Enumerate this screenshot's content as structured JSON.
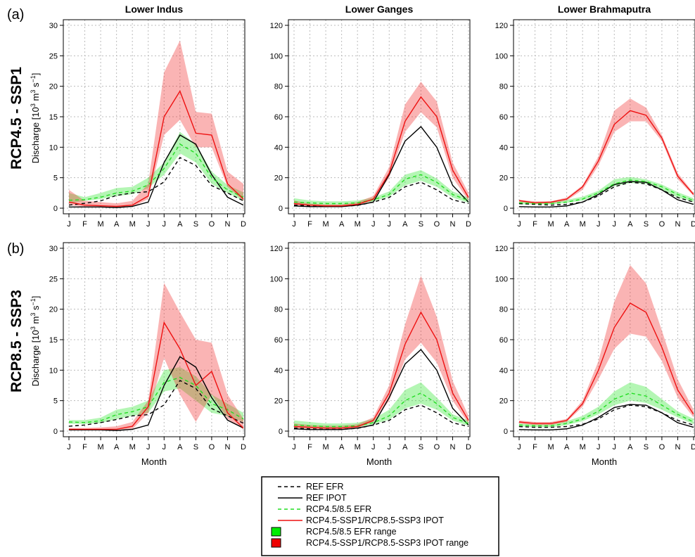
{
  "row_tags": [
    "(a)",
    "(b)"
  ],
  "row_titles": [
    "RCP4.5 - SSP1",
    "RCP8.5 - SSP3"
  ],
  "column_titles": [
    "Lower Indus",
    "Lower Ganges",
    "Lower Brahmaputra"
  ],
  "ylabel": {
    "prefix": "Discharge [10",
    "sup1": "3",
    "mid": " m",
    "sup2": "3",
    "mid2": " s",
    "sup3": "−1",
    "suffix": "]"
  },
  "xlabel": "Month",
  "legend": {
    "items": [
      {
        "label": "REF EFR",
        "kind": "line",
        "color": "#000000",
        "dash": true
      },
      {
        "label": "REF IPOT",
        "kind": "line",
        "color": "#000000",
        "dash": false
      },
      {
        "label": "RCP4.5/8.5 EFR",
        "kind": "line",
        "color": "#22dd22",
        "dash": true
      },
      {
        "label": "RCP4.5-SSP1/RCP8.5-SSP3 IPOT",
        "kind": "line",
        "color": "#ee1111",
        "dash": false
      },
      {
        "label": "RCP4.5/8.5 EFR range",
        "kind": "box",
        "color": "#00ee00"
      },
      {
        "label": "RCP4.5-SSP1/RCP8.5-SSP3 IPOT range",
        "kind": "box",
        "color": "#ee0000"
      }
    ]
  },
  "colors": {
    "efr_fill": "rgba(40,230,40,0.35)",
    "ipot_fill": "rgba(240,40,40,0.35)",
    "efr_line": "#22dd22",
    "ipot_line": "#ee1111",
    "ref": "#000000",
    "grid": "#bbbbbb"
  },
  "chart_data": [
    {
      "type": "line",
      "row": 0,
      "col": 0,
      "title": "Lower Indus",
      "x": [
        "J",
        "F",
        "M",
        "A",
        "M",
        "J",
        "J",
        "A",
        "S",
        "O",
        "N",
        "D"
      ],
      "ylim": [
        0,
        30
      ],
      "yticks": [
        0,
        5,
        10,
        15,
        20,
        25,
        30
      ],
      "xlabel": "",
      "ylabel": "Discharge",
      "series": [
        {
          "name": "REF EFR",
          "values": [
            0.5,
            0.8,
            1.2,
            2.1,
            2.5,
            2.7,
            4.3,
            8.3,
            7,
            3.7,
            2.5,
            1.2
          ]
        },
        {
          "name": "REF IPOT",
          "values": [
            0.2,
            0.2,
            0.2,
            0.1,
            0.3,
            1,
            7.5,
            12,
            10.5,
            5.5,
            1.8,
            0.5
          ]
        },
        {
          "name": "RCP4.5/8.5 EFR",
          "values": [
            1.3,
            1.4,
            1.8,
            2.5,
            2.8,
            3.8,
            6.5,
            10.5,
            9,
            5,
            3,
            1.8
          ]
        },
        {
          "name": "RCP4.5-SSP1/RCP8.5-SSP3 IPOT",
          "values": [
            1,
            0.5,
            0.4,
            0.3,
            0.5,
            2,
            15,
            19.2,
            12.3,
            12,
            4,
            1.5
          ]
        }
      ],
      "efr_range": {
        "lower": [
          0.8,
          1.2,
          1.5,
          2,
          2.3,
          3.3,
          5.5,
          9,
          7.5,
          4,
          2.5,
          1.2
        ],
        "upper": [
          2.5,
          1.8,
          2.5,
          3.3,
          3.5,
          5,
          7.5,
          12.5,
          10.5,
          6,
          3.8,
          2.6
        ]
      },
      "ipot_range": {
        "lower": [
          0.5,
          0.2,
          0.2,
          0.1,
          0.2,
          1.5,
          12,
          14.5,
          10,
          10,
          3.5,
          1.2
        ],
        "upper": [
          3,
          1.2,
          1,
          0.8,
          1.2,
          4,
          22.3,
          27.5,
          15.8,
          15.5,
          6,
          4
        ]
      }
    },
    {
      "type": "line",
      "row": 0,
      "col": 1,
      "title": "Lower Ganges",
      "x": [
        "J",
        "F",
        "M",
        "A",
        "M",
        "J",
        "J",
        "A",
        "S",
        "O",
        "N",
        "D"
      ],
      "ylim": [
        0,
        120
      ],
      "yticks": [
        0,
        20,
        40,
        60,
        80,
        100,
        120
      ],
      "xlabel": "",
      "ylabel": "",
      "series": [
        {
          "name": "REF EFR",
          "values": [
            2,
            1.5,
            1.2,
            1.2,
            1.8,
            4,
            7,
            14,
            17,
            12,
            5.5,
            3
          ]
        },
        {
          "name": "REF IPOT",
          "values": [
            1.5,
            1,
            1,
            1,
            2,
            4,
            22,
            44,
            53.5,
            40,
            15,
            4
          ]
        },
        {
          "name": "RCP4.5/8.5 EFR",
          "values": [
            4,
            3.5,
            3,
            3,
            3.5,
            5.5,
            9,
            19,
            22,
            17,
            9,
            5
          ]
        },
        {
          "name": "RCP4.5-SSP1/RCP8.5-SSP3 IPOT",
          "values": [
            3,
            2,
            1.5,
            1.5,
            2.5,
            6,
            23,
            57,
            73,
            60,
            25,
            7
          ]
        }
      ],
      "efr_range": {
        "lower": [
          2.5,
          2,
          2,
          2,
          2.5,
          4.5,
          7.5,
          15,
          18,
          14,
          7,
          3.5
        ],
        "upper": [
          6.5,
          5,
          4.5,
          4.5,
          5,
          7,
          11,
          22,
          25,
          19.5,
          11,
          7
        ]
      },
      "ipot_range": {
        "lower": [
          2,
          1.5,
          1,
          1,
          2,
          5,
          20,
          50,
          63,
          53,
          20,
          5
        ],
        "upper": [
          5,
          3,
          2.5,
          2.5,
          4,
          8,
          27,
          68,
          83,
          70,
          30,
          10
        ]
      }
    },
    {
      "type": "line",
      "row": 0,
      "col": 2,
      "title": "Lower Brahmaputra",
      "x": [
        "J",
        "F",
        "M",
        "A",
        "M",
        "J",
        "J",
        "A",
        "S",
        "O",
        "N",
        "D"
      ],
      "ylim": [
        0,
        120
      ],
      "yticks": [
        0,
        20,
        40,
        60,
        80,
        100,
        120
      ],
      "xlabel": "",
      "ylabel": "",
      "series": [
        {
          "name": "REF EFR",
          "values": [
            3,
            2.5,
            2,
            2.5,
            4,
            8,
            14,
            17,
            16,
            12,
            7,
            4
          ]
        },
        {
          "name": "REF IPOT",
          "values": [
            1,
            0.8,
            0.8,
            1.5,
            4,
            9,
            15.5,
            17.5,
            17,
            12,
            5.5,
            2.5
          ]
        },
        {
          "name": "RCP4.5/8.5 EFR",
          "values": [
            3.5,
            3,
            3,
            4,
            6,
            10,
            16,
            18.5,
            17.5,
            14,
            9,
            5
          ]
        },
        {
          "name": "RCP4.5-SSP1/RCP8.5-SSP3 IPOT",
          "values": [
            5,
            3.5,
            4,
            6,
            14,
            31,
            55,
            64,
            61,
            46,
            21,
            9
          ]
        }
      ],
      "efr_range": {
        "lower": [
          2.5,
          2.5,
          2.5,
          3.5,
          5,
          9,
          14.5,
          16.5,
          16,
          12,
          7,
          4
        ],
        "upper": [
          4.5,
          4,
          4,
          5.5,
          7.5,
          11.5,
          19,
          20.5,
          19,
          15.5,
          10.5,
          6.5
        ]
      },
      "ipot_range": {
        "lower": [
          4,
          3,
          3,
          5,
          12,
          28,
          50,
          57,
          57,
          44,
          19,
          8
        ],
        "upper": [
          5.5,
          4.5,
          4.5,
          7,
          15,
          34,
          64,
          72,
          66,
          48,
          23,
          10
        ]
      }
    },
    {
      "type": "line",
      "row": 1,
      "col": 0,
      "title": "",
      "x": [
        "J",
        "F",
        "M",
        "A",
        "M",
        "J",
        "J",
        "A",
        "S",
        "O",
        "N",
        "D"
      ],
      "ylim": [
        0,
        30
      ],
      "yticks": [
        0,
        5,
        10,
        15,
        20,
        25,
        30
      ],
      "xlabel": "Month",
      "ylabel": "Discharge",
      "series": [
        {
          "name": "REF EFR",
          "values": [
            0.8,
            1,
            1.4,
            1.9,
            2.5,
            2.7,
            4.3,
            8.3,
            7,
            3.7,
            2.5,
            1.3
          ]
        },
        {
          "name": "REF IPOT",
          "values": [
            0.2,
            0.2,
            0.2,
            0.1,
            0.3,
            1,
            7.5,
            12.2,
            10.5,
            5.5,
            1.8,
            0.5
          ]
        },
        {
          "name": "RCP4.5/8.5 EFR",
          "values": [
            1.5,
            1.4,
            1.7,
            2.7,
            3.2,
            4,
            8,
            8.8,
            7.5,
            4.5,
            3.5,
            2
          ]
        },
        {
          "name": "RCP4.5-SSP1/RCP8.5-SSP3 IPOT",
          "values": [
            0.3,
            0.3,
            0.3,
            0.3,
            0.8,
            4,
            17.8,
            13.5,
            7.5,
            9.8,
            3,
            0.5
          ]
        }
      ],
      "efr_range": {
        "lower": [
          1.2,
          1.2,
          1.3,
          2,
          2.5,
          3,
          6.5,
          7,
          5,
          3,
          2.5,
          1.5
        ],
        "upper": [
          1.8,
          1.8,
          2.2,
          3.5,
          4,
          5,
          10,
          10.5,
          9,
          6,
          4.5,
          3
        ]
      },
      "ipot_range": {
        "lower": [
          0.2,
          0.2,
          0.2,
          0.1,
          0.3,
          3,
          12,
          6,
          1.5,
          6,
          2,
          0.3
        ],
        "upper": [
          0.5,
          0.5,
          0.6,
          0.8,
          1.5,
          5,
          24.3,
          19.5,
          15,
          14.5,
          6,
          2
        ]
      }
    },
    {
      "type": "line",
      "row": 1,
      "col": 1,
      "title": "",
      "x": [
        "J",
        "F",
        "M",
        "A",
        "M",
        "J",
        "J",
        "A",
        "S",
        "O",
        "N",
        "D"
      ],
      "ylim": [
        0,
        120
      ],
      "yticks": [
        0,
        20,
        40,
        60,
        80,
        100,
        120
      ],
      "xlabel": "Month",
      "ylabel": "",
      "series": [
        {
          "name": "REF EFR",
          "values": [
            2,
            1.5,
            1.2,
            1.2,
            1.8,
            4,
            7,
            14,
            17,
            12,
            5.5,
            3
          ]
        },
        {
          "name": "REF IPOT",
          "values": [
            1.5,
            1,
            1,
            1,
            2,
            4,
            22,
            44,
            53.5,
            40,
            15,
            4
          ]
        },
        {
          "name": "RCP4.5/8.5 EFR",
          "values": [
            4,
            3.5,
            3,
            3,
            3.5,
            5.5,
            10,
            20,
            25,
            18,
            9,
            5
          ]
        },
        {
          "name": "RCP4.5-SSP1/RCP8.5-SSP3 IPOT",
          "values": [
            3,
            2.5,
            2,
            2,
            3,
            7,
            25,
            57,
            78,
            60,
            25,
            7
          ]
        }
      ],
      "efr_range": {
        "lower": [
          2.5,
          2,
          2,
          2,
          2.5,
          4.5,
          7.5,
          15,
          18,
          14,
          7,
          3.5
        ],
        "upper": [
          7,
          6,
          5,
          5,
          5.5,
          8,
          14,
          27,
          32,
          22,
          11,
          7
        ]
      },
      "ipot_range": {
        "lower": [
          2,
          1.5,
          1,
          1,
          2,
          6,
          20,
          47,
          58,
          45,
          20,
          5
        ],
        "upper": [
          5,
          4,
          3.5,
          3.5,
          4.5,
          9,
          30,
          70,
          102,
          75,
          33,
          10
        ]
      }
    },
    {
      "type": "line",
      "row": 1,
      "col": 2,
      "title": "",
      "x": [
        "J",
        "F",
        "M",
        "A",
        "M",
        "J",
        "J",
        "A",
        "S",
        "O",
        "N",
        "D"
      ],
      "ylim": [
        0,
        120
      ],
      "yticks": [
        0,
        20,
        40,
        60,
        80,
        100,
        120
      ],
      "xlabel": "Month",
      "ylabel": "",
      "series": [
        {
          "name": "REF EFR",
          "values": [
            3,
            2.5,
            2.5,
            3,
            4.5,
            8,
            14,
            17,
            16,
            12,
            7,
            4
          ]
        },
        {
          "name": "REF IPOT",
          "values": [
            1,
            0.8,
            0.8,
            1.5,
            4,
            9,
            15.5,
            17.5,
            17,
            12,
            5.5,
            2.5
          ]
        },
        {
          "name": "RCP4.5/8.5 EFR",
          "values": [
            4,
            3.5,
            3.5,
            5,
            8,
            13,
            21,
            25,
            23,
            17,
            11,
            6
          ]
        },
        {
          "name": "RCP4.5-SSP1/RCP8.5-SSP3 IPOT",
          "values": [
            6,
            5,
            5,
            7,
            18,
            40,
            68,
            84,
            78,
            55,
            27,
            11
          ]
        }
      ],
      "efr_range": {
        "lower": [
          3,
          2.5,
          2.5,
          4,
          6.5,
          11,
          17,
          20,
          18.5,
          14,
          9,
          4.5
        ],
        "upper": [
          5,
          4.5,
          4.5,
          6.5,
          10,
          16,
          26,
          32,
          29,
          21,
          13,
          8
        ]
      },
      "ipot_range": {
        "lower": [
          5,
          4,
          4,
          6,
          16,
          34,
          54,
          64,
          62,
          46,
          22,
          9
        ],
        "upper": [
          7,
          6,
          6,
          8,
          20,
          46,
          85,
          109,
          97,
          66,
          34,
          14
        ]
      }
    }
  ]
}
